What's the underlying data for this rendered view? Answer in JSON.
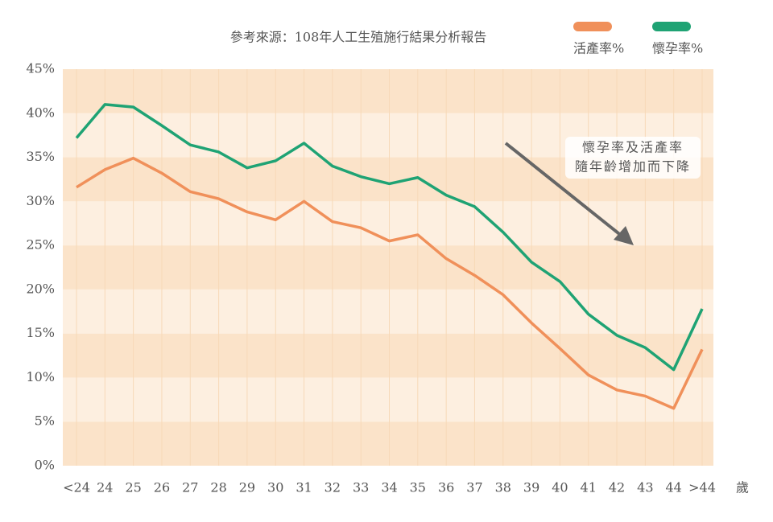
{
  "chart_data": {
    "type": "line",
    "title": "參考來源：108年人工生殖施行結果分析報告",
    "x_label": "歲",
    "categories": [
      "<24",
      "24",
      "25",
      "26",
      "27",
      "28",
      "29",
      "30",
      "31",
      "32",
      "33",
      "34",
      "35",
      "36",
      "37",
      "38",
      "39",
      "40",
      "41",
      "42",
      "43",
      "44",
      ">44"
    ],
    "series": [
      {
        "name": "活產率%",
        "color": "#f0905a",
        "values": [
          31.6,
          33.6,
          34.9,
          33.2,
          31.1,
          30.3,
          28.8,
          27.9,
          30.0,
          27.7,
          27.0,
          25.5,
          26.2,
          23.5,
          21.6,
          19.4,
          16.2,
          13.3,
          10.3,
          8.6,
          7.9,
          6.5,
          13.2
        ]
      },
      {
        "name": "懷孕率%",
        "color": "#1fa374",
        "values": [
          37.2,
          41.0,
          40.7,
          38.6,
          36.4,
          35.6,
          33.8,
          34.6,
          36.6,
          34.0,
          32.8,
          32.0,
          32.7,
          30.7,
          29.4,
          26.5,
          23.1,
          20.9,
          17.2,
          14.8,
          13.4,
          10.9,
          17.8
        ]
      }
    ],
    "ylim": [
      0,
      45
    ],
    "yticks": [
      {
        "value": 0,
        "label": "0%"
      },
      {
        "value": 5,
        "label": "5%"
      },
      {
        "value": 10,
        "label": "10%"
      },
      {
        "value": 15,
        "label": "15%"
      },
      {
        "value": 20,
        "label": "20%"
      },
      {
        "value": 25,
        "label": "25%"
      },
      {
        "value": 30,
        "label": "30%"
      },
      {
        "value": 35,
        "label": "35%"
      },
      {
        "value": 40,
        "label": "40%"
      },
      {
        "value": 45,
        "label": "45%"
      }
    ],
    "annotation": [
      "懷孕率及活產率",
      "隨年齡增加而下降"
    ],
    "band_colors": [
      "#fbe3c9",
      "#fdefe0"
    ],
    "legend": "top-right"
  }
}
